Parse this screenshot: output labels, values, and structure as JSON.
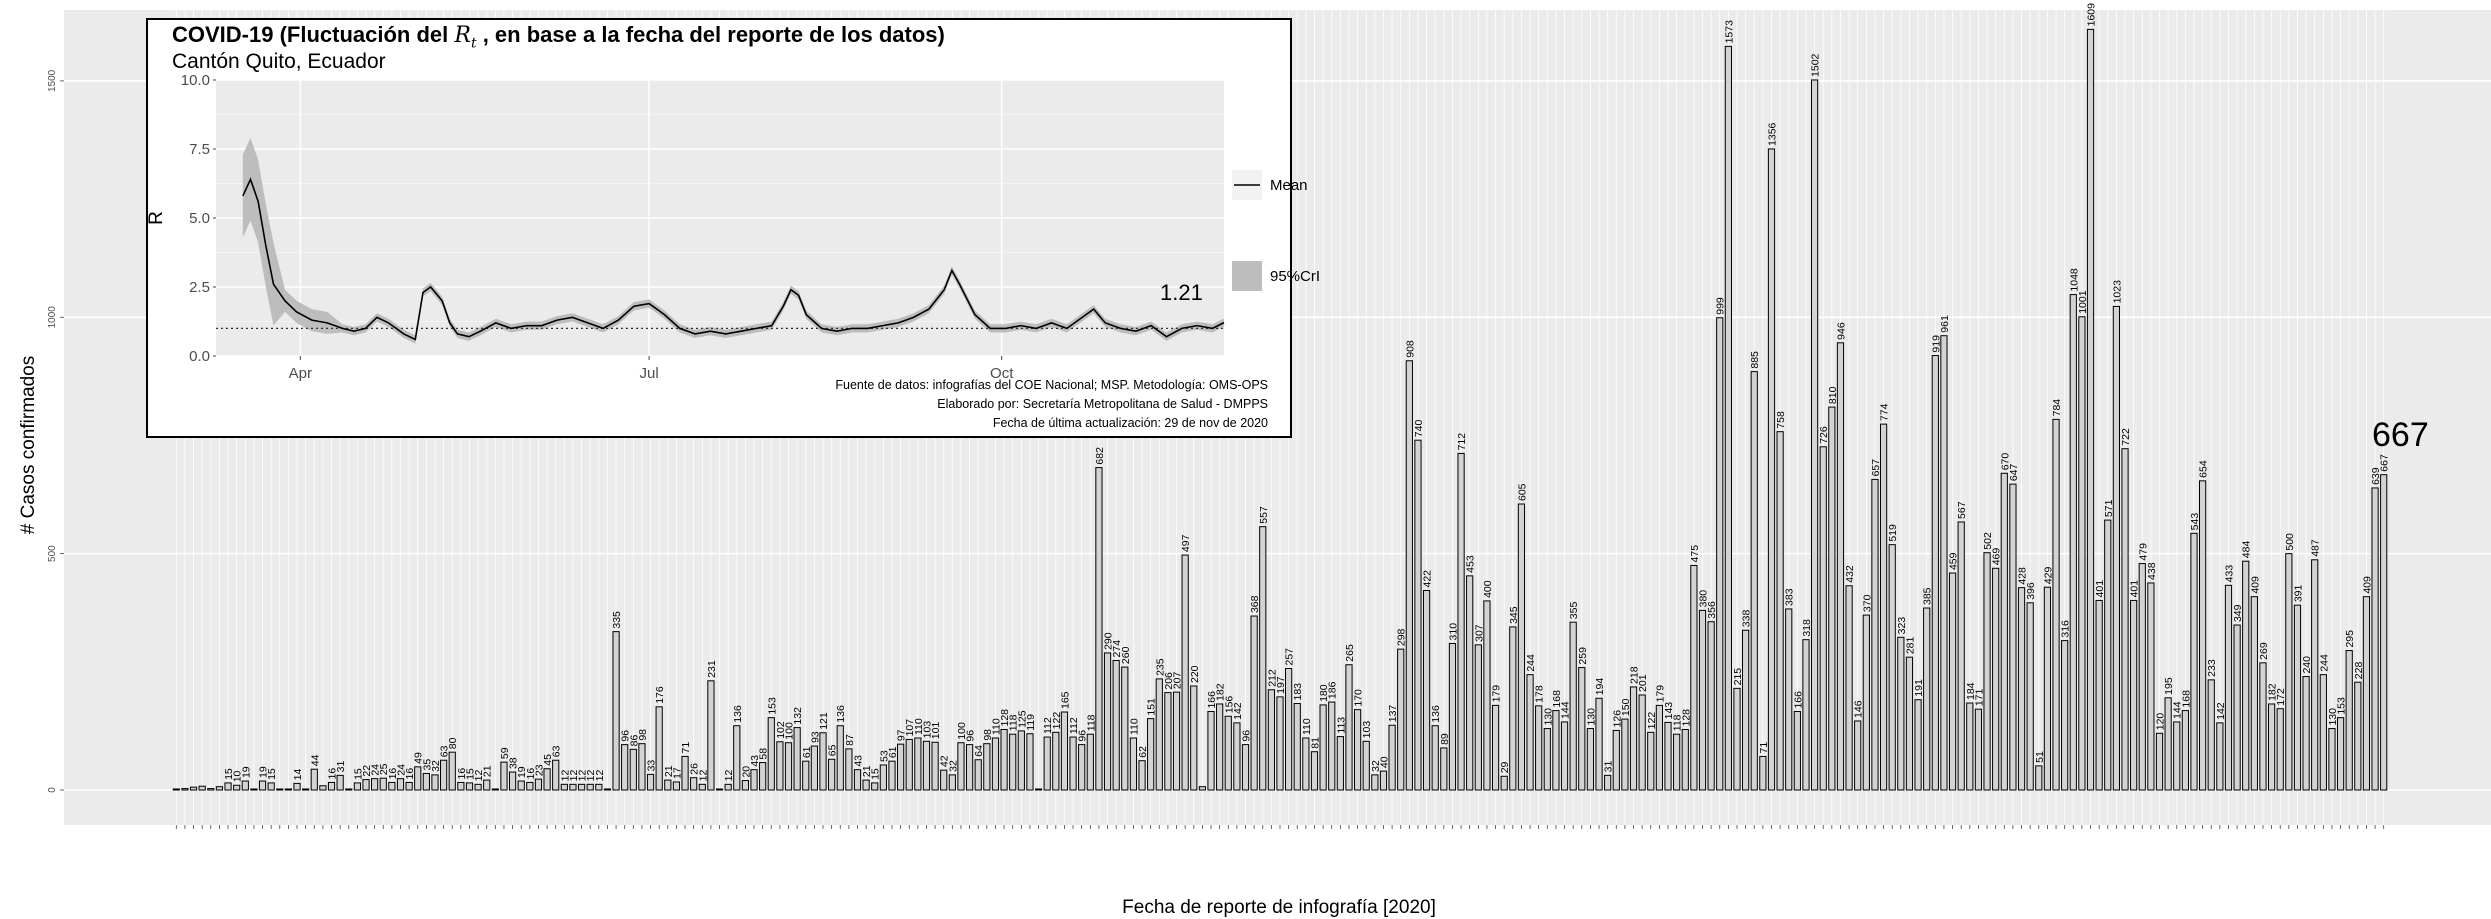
{
  "chart_data": [
    {
      "type": "bar",
      "title": "",
      "xlabel": "Fecha de reporte de infografía [2020]",
      "ylabel": "# Casos confirmados",
      "ylim": [
        0,
        1650
      ],
      "yticks": [
        0,
        500,
        1000,
        1500
      ],
      "grid": true,
      "bar_color": "#d3d3d3",
      "x_tick_labels_legible": false,
      "values": [
        1,
        3,
        6,
        8,
        3,
        7,
        15,
        10,
        19,
        0,
        19,
        15,
        0,
        0,
        14,
        0,
        44,
        9,
        16,
        31,
        0,
        15,
        22,
        24,
        25,
        16,
        24,
        16,
        49,
        35,
        32,
        63,
        80,
        16,
        15,
        12,
        21,
        0,
        59,
        38,
        19,
        16,
        23,
        45,
        63,
        12,
        12,
        12,
        12,
        12,
        0,
        335,
        96,
        86,
        98,
        33,
        176,
        21,
        17,
        71,
        26,
        12,
        231,
        0,
        12,
        136,
        20,
        43,
        58,
        153,
        102,
        100,
        132,
        61,
        93,
        121,
        65,
        136,
        87,
        43,
        21,
        15,
        53,
        61,
        97,
        107,
        110,
        103,
        101,
        42,
        32,
        100,
        96,
        64,
        98,
        110,
        128,
        118,
        125,
        119,
        0,
        112,
        122,
        165,
        112,
        96,
        118,
        682,
        290,
        274,
        260,
        110,
        62,
        151,
        235,
        206,
        207,
        497,
        220,
        7,
        166,
        182,
        156,
        142,
        96,
        368,
        557,
        212,
        197,
        257,
        183,
        110,
        81,
        180,
        186,
        113,
        265,
        170,
        103,
        32,
        40,
        137,
        298,
        908,
        740,
        422,
        136,
        89,
        310,
        712,
        453,
        307,
        400,
        179,
        29,
        345,
        605,
        244,
        178,
        130,
        168,
        144,
        355,
        259,
        130,
        194,
        31,
        126,
        150,
        218,
        201,
        122,
        179,
        143,
        118,
        128,
        475,
        380,
        356,
        999,
        1573,
        215,
        338,
        885,
        71,
        1356,
        758,
        383,
        166,
        318,
        1502,
        726,
        810,
        946,
        432,
        146,
        370,
        657,
        774,
        519,
        323,
        281,
        191,
        385,
        919,
        961,
        459,
        567,
        184,
        171,
        502,
        469,
        670,
        647,
        428,
        396,
        51,
        429,
        784,
        316,
        1048,
        1001,
        1609,
        401,
        571,
        1023,
        722,
        401,
        479,
        438,
        120,
        195,
        144,
        168,
        543,
        654,
        233,
        142,
        433,
        349,
        484,
        409,
        269,
        182,
        172,
        500,
        391,
        240,
        487,
        244,
        130,
        153,
        295,
        228,
        409,
        639,
        667
      ],
      "last_value_label": "667"
    },
    {
      "type": "line",
      "title": "COVID-19 (Fluctuación del R_t , en base a la fecha del reporte de los datos)",
      "title_prefix": "COVID-19 (Fluctuación del ",
      "title_symbol": "R",
      "title_symbol_sub": "t",
      "title_suffix": " , en base a la fecha del reporte de los datos)",
      "subtitle": "Cantón Quito, Ecuador",
      "xlabel": "",
      "ylabel": "R",
      "ylim": [
        0,
        10
      ],
      "yticks": [
        "0.0",
        "2.5",
        "5.0",
        "7.5",
        "10.0"
      ],
      "x_ticks": [
        "Apr",
        "Jul",
        "Oct"
      ],
      "x_tick_dates": [
        "2020-04-01",
        "2020-07-01",
        "2020-10-01"
      ],
      "x_range": [
        "2020-03-10",
        "2020-11-28"
      ],
      "reference_line": 1,
      "legend": [
        "Mean",
        "95%CrI"
      ],
      "legend_position": "right",
      "annotation": "1.21",
      "series": [
        {
          "name": "Mean",
          "x": [
            "2020-03-17",
            "2020-03-19",
            "2020-03-21",
            "2020-03-23",
            "2020-03-25",
            "2020-03-28",
            "2020-03-31",
            "2020-04-04",
            "2020-04-08",
            "2020-04-12",
            "2020-04-15",
            "2020-04-18",
            "2020-04-21",
            "2020-04-24",
            "2020-04-28",
            "2020-05-01",
            "2020-05-03",
            "2020-05-05",
            "2020-05-08",
            "2020-05-10",
            "2020-05-12",
            "2020-05-15",
            "2020-05-18",
            "2020-05-22",
            "2020-05-26",
            "2020-05-30",
            "2020-06-03",
            "2020-06-07",
            "2020-06-11",
            "2020-06-15",
            "2020-06-19",
            "2020-06-23",
            "2020-06-27",
            "2020-07-01",
            "2020-07-05",
            "2020-07-09",
            "2020-07-13",
            "2020-07-17",
            "2020-07-21",
            "2020-07-25",
            "2020-07-29",
            "2020-08-02",
            "2020-08-05",
            "2020-08-07",
            "2020-08-09",
            "2020-08-11",
            "2020-08-15",
            "2020-08-19",
            "2020-08-23",
            "2020-08-27",
            "2020-08-31",
            "2020-09-04",
            "2020-09-08",
            "2020-09-12",
            "2020-09-16",
            "2020-09-18",
            "2020-09-20",
            "2020-09-24",
            "2020-09-28",
            "2020-10-02",
            "2020-10-06",
            "2020-10-10",
            "2020-10-14",
            "2020-10-18",
            "2020-10-22",
            "2020-10-25",
            "2020-10-28",
            "2020-11-01",
            "2020-11-05",
            "2020-11-09",
            "2020-11-13",
            "2020-11-17",
            "2020-11-21",
            "2020-11-25",
            "2020-11-28"
          ],
          "y": [
            5.8,
            6.4,
            5.6,
            4.0,
            2.6,
            2.0,
            1.6,
            1.3,
            1.2,
            1.0,
            0.9,
            1.0,
            1.4,
            1.2,
            0.8,
            0.6,
            2.3,
            2.5,
            2.0,
            1.2,
            0.8,
            0.7,
            0.9,
            1.2,
            1.0,
            1.1,
            1.1,
            1.3,
            1.4,
            1.2,
            1.0,
            1.3,
            1.8,
            1.9,
            1.5,
            1.0,
            0.8,
            0.9,
            0.8,
            0.9,
            1.0,
            1.1,
            1.8,
            2.4,
            2.2,
            1.5,
            1.0,
            0.9,
            1.0,
            1.0,
            1.1,
            1.2,
            1.4,
            1.7,
            2.4,
            3.1,
            2.6,
            1.5,
            1.0,
            1.0,
            1.1,
            1.0,
            1.2,
            1.0,
            1.4,
            1.7,
            1.2,
            1.0,
            0.9,
            1.1,
            0.7,
            1.0,
            1.1,
            1.0,
            1.21
          ]
        }
      ]
    }
  ],
  "credits": [
    "Fuente de datos: infografías del COE Nacional; MSP. Metodología: OMS-OPS",
    "Elaborado por: Secretaría Metropolitana de Salud - DMPPS",
    "Fecha de última actualización: 29 de nov de 2020"
  ],
  "colors": {
    "panel_background": "#ebebeb",
    "grid": "#ffffff",
    "bar_fill": "#d3d3d3",
    "bar_stroke": "#000000",
    "ci_band": "#bdbdbd"
  }
}
